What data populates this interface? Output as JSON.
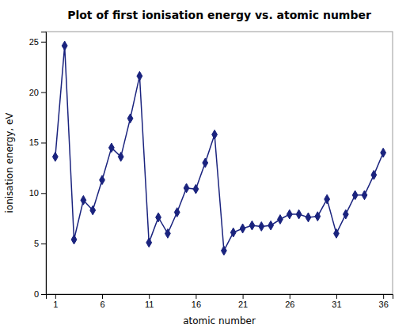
{
  "chart_data": {
    "type": "line",
    "title": "Plot of first ionisation energy vs. atomic number",
    "xlabel": "atomic number",
    "ylabel": "ionisation energy, eV",
    "x": [
      1,
      2,
      3,
      4,
      5,
      6,
      7,
      8,
      9,
      10,
      11,
      12,
      13,
      14,
      15,
      16,
      17,
      18,
      19,
      20,
      21,
      22,
      23,
      24,
      25,
      26,
      27,
      28,
      29,
      30,
      31,
      32,
      33,
      34,
      35,
      36
    ],
    "values": [
      13.6,
      24.6,
      5.4,
      9.3,
      8.3,
      11.3,
      14.5,
      13.6,
      17.4,
      21.6,
      5.1,
      7.6,
      6.0,
      8.1,
      10.5,
      10.4,
      13.0,
      15.8,
      4.3,
      6.1,
      6.5,
      6.8,
      6.7,
      6.8,
      7.4,
      7.9,
      7.9,
      7.6,
      7.7,
      9.4,
      6.0,
      7.9,
      9.8,
      9.8,
      11.8,
      14.0
    ],
    "color": "#1a237e",
    "marker": "diamond",
    "xlim": [
      0,
      37
    ],
    "ylim": [
      0,
      26
    ],
    "xticks": [
      1,
      6,
      11,
      16,
      21,
      26,
      31,
      36
    ],
    "yticks": [
      0,
      5,
      10,
      15,
      20,
      25
    ],
    "grid": false
  }
}
